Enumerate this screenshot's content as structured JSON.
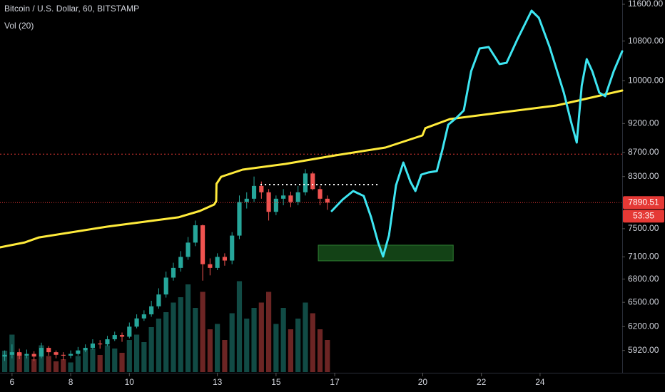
{
  "chart_data": {
    "type": "candlestick",
    "title": "Bitcoin / U.S. Dollar, 60, BITSTAMP",
    "indicator": "Vol (20)",
    "log_scale": true,
    "xlim": [
      5.59,
      26.8
    ],
    "ylim": [
      5653,
      11697
    ],
    "xticks": [
      6,
      8,
      10,
      13,
      15,
      17,
      20,
      22,
      24
    ],
    "yticks": [
      {
        "value": 11600,
        "label": "11600.00"
      },
      {
        "value": 10800,
        "label": "10800.00"
      },
      {
        "value": 10000,
        "label": "10000.00"
      },
      {
        "value": 9200,
        "label": "9200.00"
      },
      {
        "value": 8700,
        "label": "8700.00"
      },
      {
        "value": 8300,
        "label": "8300.00"
      },
      {
        "value": 7500,
        "label": "7500.00"
      },
      {
        "value": 7100,
        "label": "7100.00"
      },
      {
        "value": 6800,
        "label": "6800.00"
      },
      {
        "value": 6500,
        "label": "6500.00"
      },
      {
        "value": 6200,
        "label": "6200.00"
      },
      {
        "value": 5920,
        "label": "5920.00"
      }
    ],
    "up_color": "#26a69a",
    "down_color": "#ef5350",
    "x": [
      5.75,
      6,
      6.25,
      6.5,
      6.75,
      7,
      7.25,
      7.5,
      7.75,
      8,
      8.25,
      8.5,
      8.75,
      9,
      9.25,
      9.5,
      9.75,
      10,
      10.25,
      10.5,
      10.75,
      11,
      11.25,
      11.5,
      11.75,
      12,
      12.25,
      12.5,
      12.75,
      13,
      13.25,
      13.5,
      13.75,
      14,
      14.25,
      14.5,
      14.75,
      15,
      15.25,
      15.5,
      15.75,
      16,
      16.25,
      16.5,
      16.75
    ],
    "open": [
      5850,
      5870,
      5900,
      5860,
      5880,
      5850,
      5950,
      5900,
      5870,
      5860,
      5880,
      5920,
      5950,
      6000,
      5990,
      6050,
      6100,
      6080,
      6200,
      6300,
      6350,
      6450,
      6600,
      6820,
      6950,
      7100,
      7300,
      7550,
      7000,
      6950,
      7100,
      7050,
      7400,
      7900,
      7950,
      8150,
      8050,
      7750,
      7950,
      8000,
      7900,
      8050,
      8350,
      8100,
      7950
    ],
    "high": [
      5920,
      5990,
      5940,
      5930,
      5910,
      6010,
      5970,
      5920,
      5900,
      5920,
      5960,
      5990,
      6050,
      6040,
      6090,
      6140,
      6130,
      6250,
      6350,
      6400,
      6520,
      6680,
      6900,
      7020,
      7180,
      7380,
      7620,
      7560,
      7080,
      7150,
      7150,
      7450,
      8000,
      8050,
      8300,
      8220,
      8100,
      8000,
      8100,
      8060,
      8150,
      8420,
      8380,
      8150,
      8000
    ],
    "low": [
      5800,
      5830,
      5820,
      5830,
      5800,
      5830,
      5860,
      5830,
      5810,
      5830,
      5860,
      5900,
      5930,
      5940,
      5970,
      6030,
      6020,
      6060,
      6180,
      6270,
      6320,
      6420,
      6560,
      6780,
      6900,
      7060,
      7250,
      6780,
      6850,
      6920,
      6980,
      7000,
      7350,
      7800,
      7900,
      7950,
      7620,
      7700,
      7850,
      7820,
      7850,
      8000,
      8080,
      7850,
      7780
    ],
    "close": [
      5870,
      5900,
      5860,
      5880,
      5850,
      5950,
      5900,
      5870,
      5860,
      5880,
      5920,
      5950,
      6000,
      5990,
      6050,
      6100,
      6080,
      6200,
      6300,
      6350,
      6450,
      6600,
      6820,
      6950,
      7100,
      7300,
      7550,
      7000,
      6950,
      7100,
      7050,
      7400,
      7900,
      7950,
      8150,
      8050,
      7750,
      7950,
      8000,
      7900,
      8050,
      8350,
      8100,
      7950,
      7890.51
    ],
    "volume": [
      200,
      350,
      180,
      150,
      120,
      250,
      150,
      100,
      120,
      90,
      150,
      200,
      220,
      160,
      250,
      220,
      180,
      300,
      350,
      280,
      420,
      500,
      560,
      650,
      700,
      820,
      600,
      750,
      400,
      450,
      300,
      550,
      850,
      500,
      600,
      650,
      750,
      450,
      600,
      400,
      500,
      650,
      550,
      400,
      300
    ],
    "volume_lim": [
      0,
      1000
    ],
    "last_price": 7890.51,
    "last_price_color": "#e53935",
    "countdown": "53:35",
    "lines": [
      {
        "color": "#ffeb3b",
        "x": [
          5.59,
          6.44,
          6.92,
          9.24,
          11.67,
          12.4,
          12.89,
          12.96,
          12.97,
          13.13,
          13.86,
          15.32,
          17.02,
          18.73,
          19.99,
          20.09,
          20.92,
          22.62,
          24.56,
          26.8
        ],
        "values": [
          7234,
          7303,
          7374,
          7530,
          7668,
          7763,
          7860,
          7914,
          8183,
          8296,
          8412,
          8506,
          8649,
          8781,
          8990,
          9118,
          9280,
          9397,
          9529,
          9810
        ]
      },
      {
        "color": "#3ee6f2",
        "x": [
          16.9,
          17.27,
          17.63,
          17.99,
          18.24,
          18.48,
          18.65,
          18.85,
          19.09,
          19.34,
          19.58,
          19.75,
          19.95,
          20.19,
          20.48,
          20.67,
          20.87,
          21.16,
          21.4,
          21.65,
          21.94,
          22.25,
          22.62,
          22.86,
          23.23,
          23.71,
          23.96,
          24.32,
          24.81,
          25.05,
          25.25,
          25.42,
          25.59,
          25.78,
          26.02,
          26.22,
          26.51,
          26.8
        ],
        "values": [
          7763,
          7937,
          8070,
          7992,
          7668,
          7303,
          7105,
          7405,
          8159,
          8529,
          8216,
          8070,
          8331,
          8366,
          8389,
          8745,
          9179,
          9308,
          9437,
          10184,
          10645,
          10675,
          10327,
          10354,
          10839,
          11456,
          11299,
          10689,
          9769,
          9243,
          8867,
          9905,
          10427,
          10184,
          9769,
          9702,
          10184,
          10588
        ]
      }
    ],
    "levels": [
      {
        "value": 8670,
        "color": "#e53935"
      }
    ],
    "segment": {
      "value": 8171,
      "x": [
        14.47,
        18.55
      ],
      "color": "#ffffff"
    },
    "zone": {
      "x": [
        16.44,
        21.04
      ],
      "y": [
        7046,
        7264
      ],
      "color": "#1b5e20"
    }
  }
}
